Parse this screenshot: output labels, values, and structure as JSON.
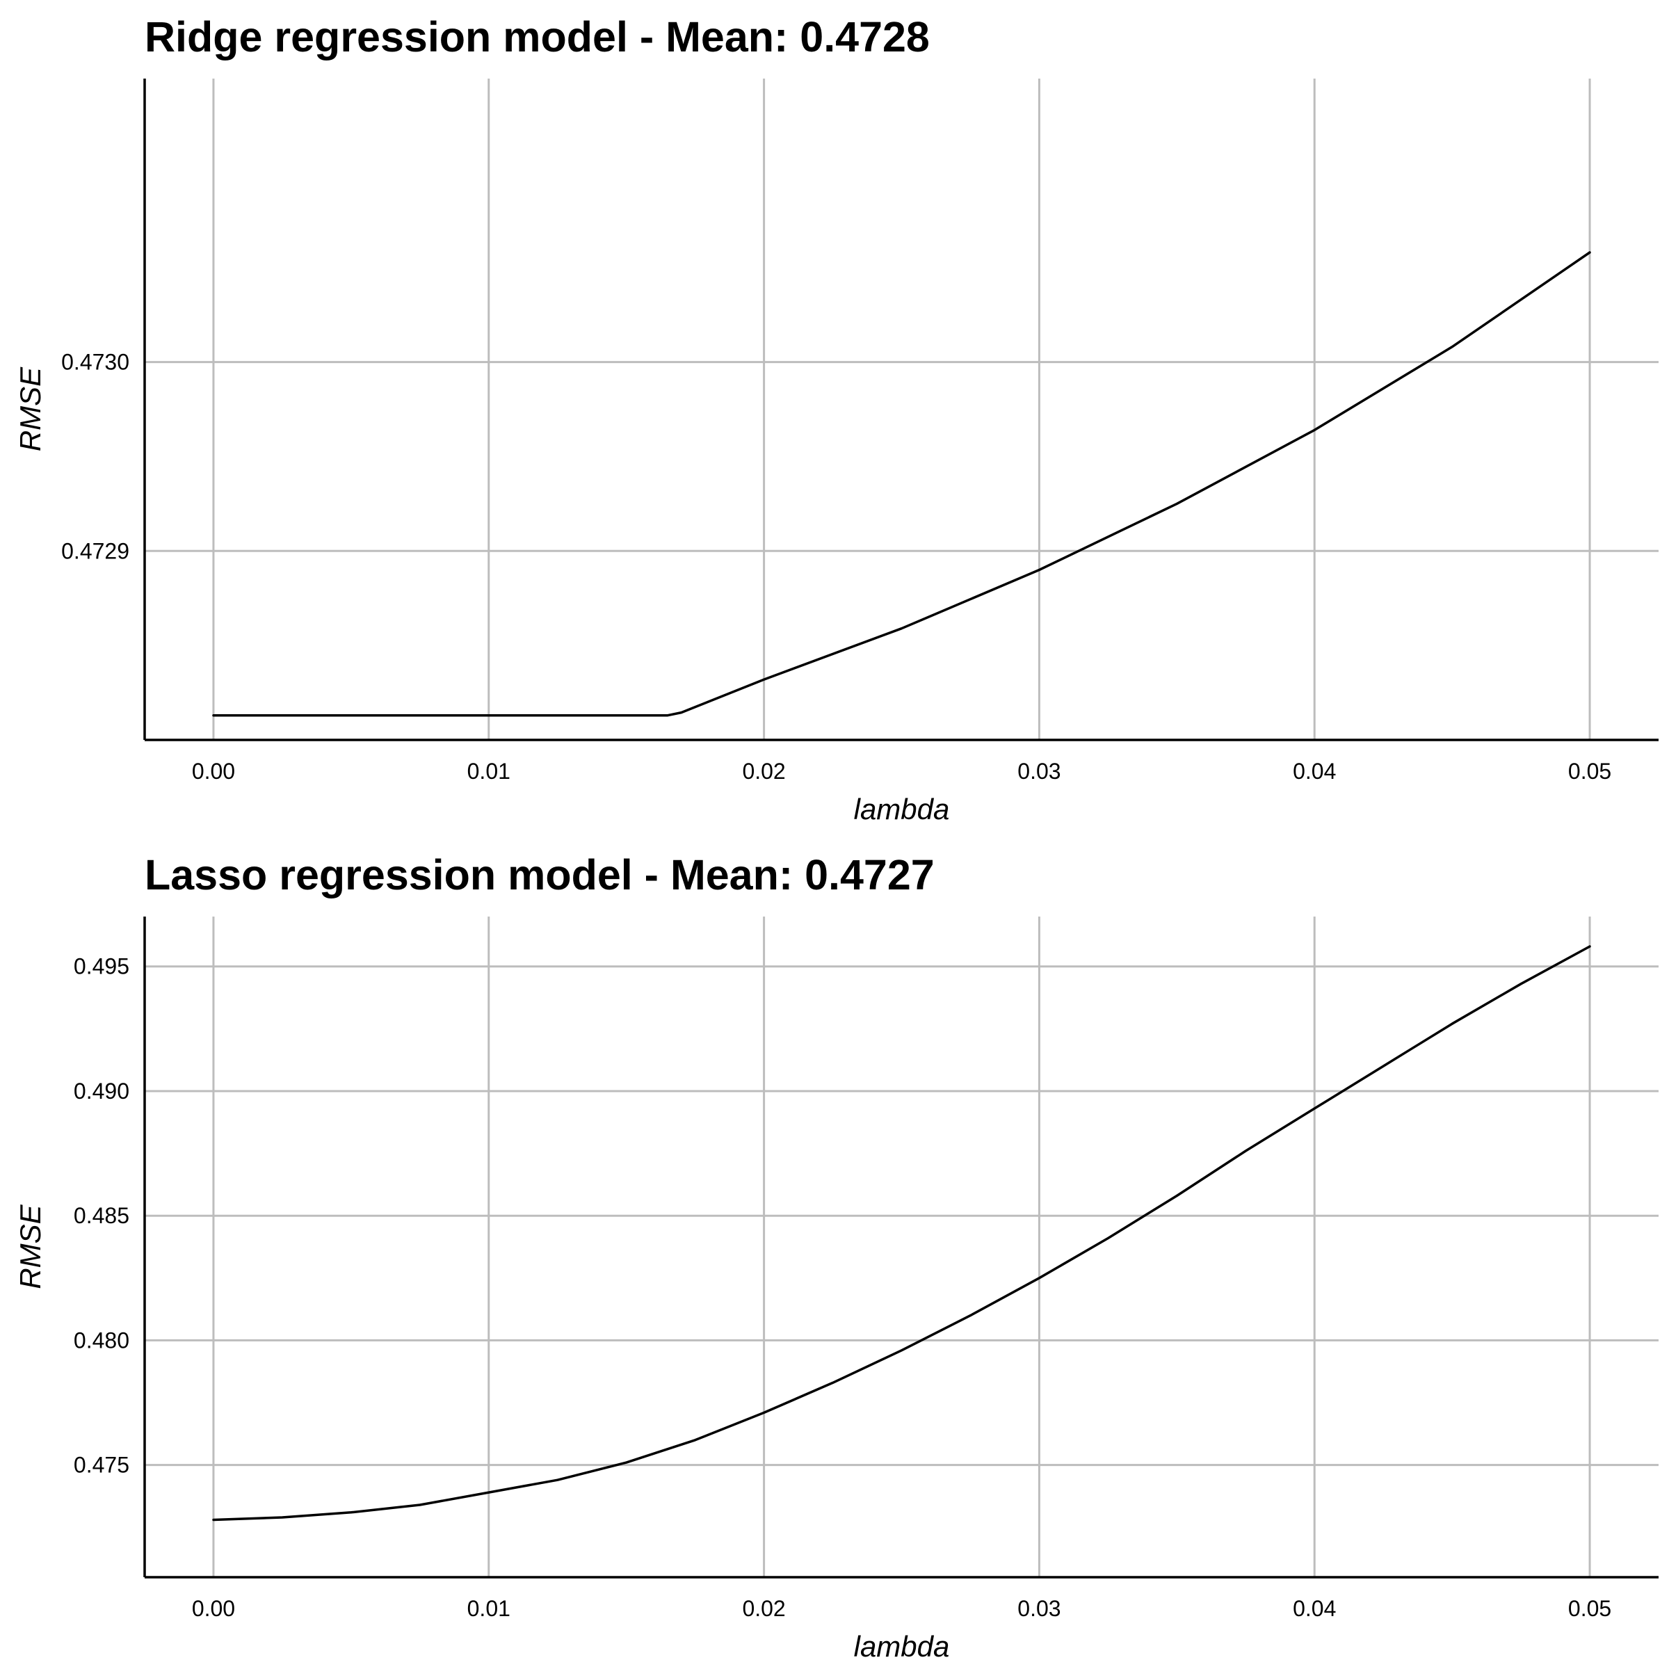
{
  "chart_data": [
    {
      "type": "line",
      "title": "Ridge regression model - Mean: 0.4728",
      "xlabel": "lambda",
      "ylabel": "RMSE",
      "xlim": [
        -0.0025,
        0.0525
      ],
      "ylim": [
        0.4728,
        0.47315
      ],
      "xticks": [
        0.0,
        0.01,
        0.02,
        0.03,
        0.04,
        0.05
      ],
      "xtick_labels": [
        "0.00",
        "0.01",
        "0.02",
        "0.03",
        "0.04",
        "0.05"
      ],
      "yticks": [
        0.4729,
        0.473
      ],
      "ytick_labels": [
        "0.4729",
        "0.4730"
      ],
      "grid": true,
      "series": [
        {
          "color": "#000000",
          "x": [
            0.0,
            0.005,
            0.01,
            0.0165,
            0.017,
            0.02,
            0.025,
            0.03,
            0.035,
            0.04,
            0.045,
            0.05
          ],
          "y": [
            0.472813,
            0.472813,
            0.472813,
            0.472813,
            0.4728145,
            0.472832,
            0.472859,
            0.47289,
            0.472925,
            0.472964,
            0.473008,
            0.473058
          ]
        }
      ]
    },
    {
      "type": "line",
      "title": "Lasso regression model - Mean: 0.4727",
      "xlabel": "lambda",
      "ylabel": "RMSE",
      "xlim": [
        -0.0025,
        0.0525
      ],
      "ylim": [
        0.4705,
        0.497
      ],
      "xticks": [
        0.0,
        0.01,
        0.02,
        0.03,
        0.04,
        0.05
      ],
      "xtick_labels": [
        "0.00",
        "0.01",
        "0.02",
        "0.03",
        "0.04",
        "0.05"
      ],
      "yticks": [
        0.475,
        0.48,
        0.485,
        0.49,
        0.495
      ],
      "ytick_labels": [
        "0.475",
        "0.480",
        "0.485",
        "0.490",
        "0.495"
      ],
      "grid": true,
      "series": [
        {
          "color": "#000000",
          "x": [
            0.0,
            0.0025,
            0.005,
            0.0075,
            0.01,
            0.0125,
            0.015,
            0.0175,
            0.02,
            0.0225,
            0.025,
            0.0275,
            0.03,
            0.0325,
            0.035,
            0.0375,
            0.04,
            0.0425,
            0.045,
            0.0475,
            0.05
          ],
          "y": [
            0.4728,
            0.4729,
            0.4731,
            0.4734,
            0.4739,
            0.4744,
            0.4751,
            0.476,
            0.4771,
            0.4783,
            0.4796,
            0.481,
            0.4825,
            0.4841,
            0.4858,
            0.4876,
            0.4893,
            0.491,
            0.4927,
            0.4943,
            0.4958
          ]
        }
      ]
    }
  ]
}
